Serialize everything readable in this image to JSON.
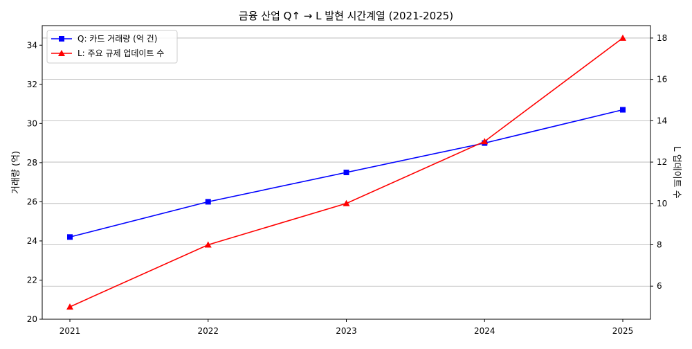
{
  "chart_data": {
    "type": "line",
    "title": "금융 산업 Q↑ → L 발현 시간계열 (2021-2025)",
    "x": [
      "2021",
      "2022",
      "2023",
      "2024",
      "2025"
    ],
    "series": [
      {
        "name": "Q: 카드 거래량 (억 건)",
        "axis": "left",
        "color": "#0000ff",
        "marker": "square",
        "values": [
          24.2,
          26.0,
          27.5,
          29.0,
          30.7
        ]
      },
      {
        "name": "L: 주요 규제 업데이트 수",
        "axis": "right",
        "color": "#ff0000",
        "marker": "triangle",
        "values": [
          5,
          8,
          10,
          13,
          18
        ]
      }
    ],
    "ylabel_left": "거래량 (억)",
    "ylabel_right": "L 업데이트 수",
    "ylim_left": [
      20,
      35
    ],
    "ylim_right": [
      4.4,
      18.6
    ],
    "yticks_left": [
      "20",
      "22",
      "24",
      "26",
      "28",
      "30",
      "32",
      "34"
    ],
    "yticks_right": [
      "6",
      "8",
      "10",
      "12",
      "14",
      "16",
      "18"
    ],
    "grid": "horizontal (right axis)",
    "legend_position": "top-left"
  }
}
